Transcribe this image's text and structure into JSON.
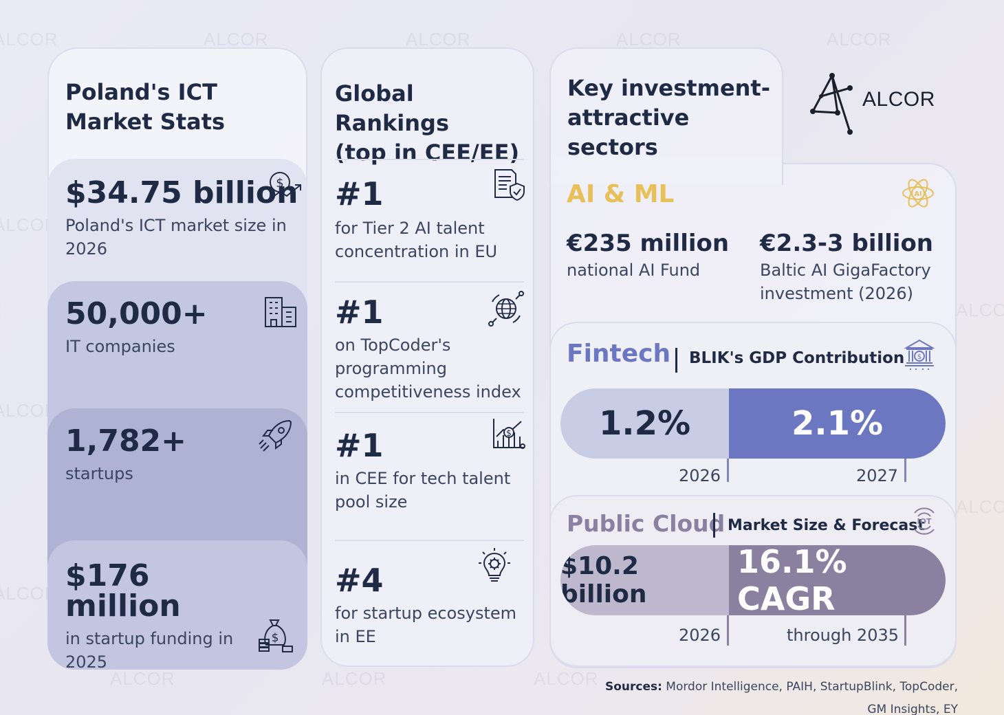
{
  "watermark": "ALCOR",
  "brand": {
    "logo_text": "ALCOR"
  },
  "market_stats": {
    "title": "Poland's ICT Market Stats",
    "items": [
      {
        "value": "$34.75 billion",
        "description": "Poland's ICT market size in 2026",
        "icon": "money-growth-icon"
      },
      {
        "value": "50,000+",
        "description": "IT companies",
        "icon": "buildings-icon"
      },
      {
        "value": "1,782+",
        "description": "startups",
        "icon": "rocket-icon"
      },
      {
        "value": "$176 million",
        "description": "in startup funding in 2025",
        "icon": "money-bag-icon"
      }
    ]
  },
  "rankings": {
    "title_bold": "Global Rankings",
    "title_rest": "(top in CEE/EE)",
    "items": [
      {
        "rank": "#1",
        "description": "for Tier 2 AI talent concentration in EU",
        "icon": "document-shield-icon"
      },
      {
        "rank": "#1",
        "description": "on TopCoder's programming competitiveness index",
        "icon": "globe-network-icon"
      },
      {
        "rank": "#1",
        "description": "in CEE for tech talent pool size",
        "icon": "chart-dollar-icon"
      },
      {
        "rank": "#4",
        "description": "for startup ecosystem in EE",
        "icon": "lightbulb-gear-icon"
      }
    ]
  },
  "sectors": {
    "title": "Key investment-attractive sectors",
    "ai_ml": {
      "title": "AI & ML",
      "icon": "ai-atom-icon",
      "stats": [
        {
          "value": "€235 million",
          "description": "national AI Fund"
        },
        {
          "value": "€2.3-3 billion",
          "description": "Baltic AI GigaFactory investment (2026)"
        }
      ]
    },
    "fintech": {
      "title": "Fintech",
      "subtitle": "BLIK's GDP Contribution",
      "icon": "bank-icon",
      "bars": [
        {
          "value": "1.2%",
          "label": "2026"
        },
        {
          "value": "2.1%",
          "label": "2027"
        }
      ]
    },
    "public_cloud": {
      "title": "Public Cloud",
      "subtitle": "Market Size & Forecast",
      "icon": "iot-icon",
      "icon_text": "IOT",
      "bars": [
        {
          "value": "$10.2 billion",
          "label": "2026"
        },
        {
          "value": "16.1% CAGR",
          "label": "through 2035"
        }
      ]
    },
    "colors": {
      "ai_accent": "#e7c05a",
      "fintech_accent": "#6b77c0",
      "fintech_light": "#c8cce4",
      "cloud_accent": "#8a80a0",
      "cloud_light": "#bdb8cd"
    }
  },
  "sources": {
    "label": "Sources:",
    "text": "Mordor Intelligence, PAIH, StartupBlink, TopCoder, GM Insights, EY"
  }
}
